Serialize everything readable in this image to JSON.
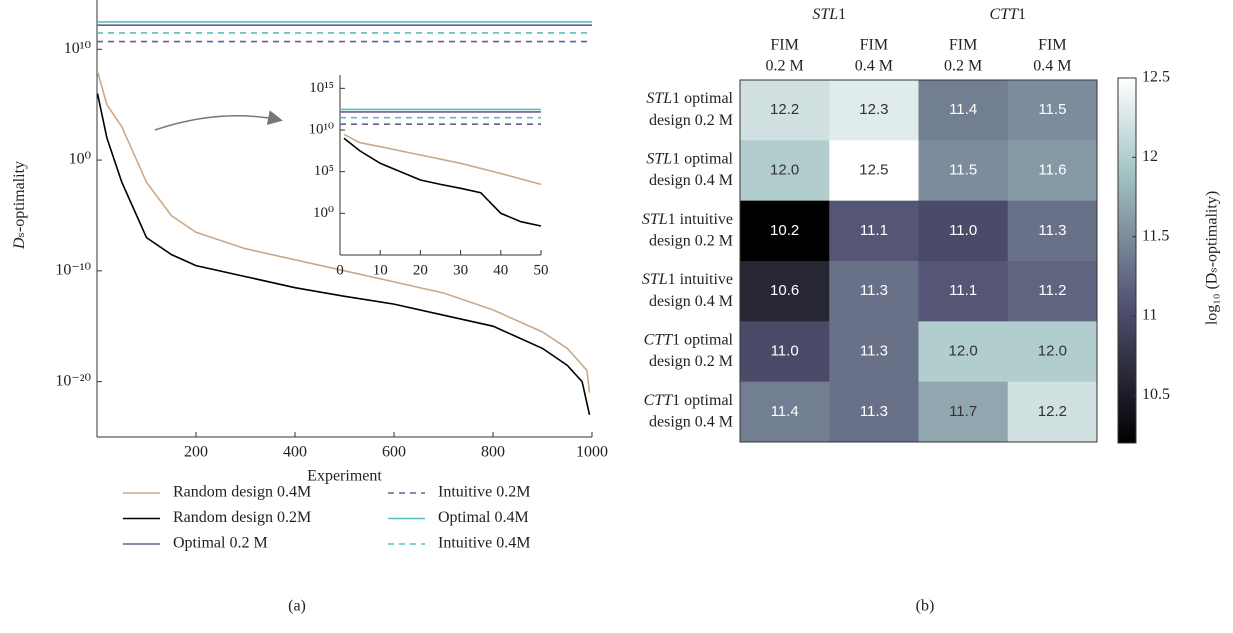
{
  "chart_data": [
    {
      "type": "line",
      "log_y": true,
      "legend": "below",
      "caption": "(a)",
      "x_label": "Experiment",
      "y_label": "Dₛ-optimality",
      "xlim": [
        0,
        1000
      ],
      "xticks": [
        200,
        400,
        600,
        800,
        1000
      ],
      "ylim": [
        1e-25,
        100000000000000.0
      ],
      "yticks": [
        {
          "value": 1e-20,
          "label": "10⁻²⁰"
        },
        {
          "value": 1e-10,
          "label": "10⁻¹⁰"
        },
        {
          "value": 1,
          "label": "10⁰"
        },
        {
          "value": 10000000000.0,
          "label": "10¹⁰"
        }
      ],
      "series": [
        {
          "name": "Random design 0.4M",
          "color": "#c9a98a",
          "dash": false,
          "x": [
            1,
            20,
            50,
            100,
            150,
            200,
            300,
            400,
            500,
            600,
            700,
            800,
            900,
            950,
            990,
            995
          ],
          "values": [
            100000000.0,
            100000.0,
            1000.0,
            0.01,
            1e-05,
            3e-07,
            1e-08,
            1e-09,
            1e-10,
            1e-11,
            1e-12,
            3e-14,
            3e-16,
            1e-17,
            1e-19,
            1e-21
          ]
        },
        {
          "name": "Random design 0.2M",
          "color": "#000000",
          "dash": false,
          "x": [
            1,
            20,
            50,
            100,
            150,
            200,
            300,
            400,
            500,
            600,
            700,
            800,
            900,
            950,
            980,
            995
          ],
          "values": [
            1000000.0,
            100.0,
            0.01,
            1e-07,
            3e-09,
            3e-10,
            3e-11,
            3e-12,
            5e-13,
            1e-13,
            1e-14,
            1e-15,
            1e-17,
            3e-19,
            1e-20,
            1e-23
          ]
        },
        {
          "name": "Optimal 0.2 M",
          "color": "#6b5b95",
          "dash": false,
          "x": [
            0,
            1000
          ],
          "values": [
            1500000000000.0,
            1500000000000.0
          ]
        },
        {
          "name": "Intuitive 0.2M",
          "color": "#6b5b95",
          "dash": true,
          "x": [
            0,
            1000
          ],
          "values": [
            50000000000.0,
            50000000000.0
          ]
        },
        {
          "name": "Optimal 0.4M",
          "color": "#5bbdbd",
          "dash": false,
          "x": [
            0,
            1000
          ],
          "values": [
            3000000000000.0,
            3000000000000.0
          ]
        },
        {
          "name": "Intuitive 0.4M",
          "color": "#5bbdbd",
          "dash": true,
          "x": [
            0,
            1000
          ],
          "values": [
            300000000000.0,
            300000000000.0
          ]
        }
      ]
    },
    {
      "type": "line",
      "log_y": true,
      "xlim": [
        0,
        50
      ],
      "xticks": [
        0,
        10,
        20,
        30,
        40,
        50
      ],
      "ylim": [
        1e-05,
        1e+16
      ],
      "yticks": [
        {
          "value": 1,
          "label": "10⁰"
        },
        {
          "value": 100000.0,
          "label": "10⁵"
        },
        {
          "value": 10000000000.0,
          "label": "10¹⁰"
        },
        {
          "value": 1000000000000000.0,
          "label": "10¹⁵"
        }
      ],
      "series": [
        {
          "color": "#c9a98a",
          "dash": false,
          "x": [
            1,
            5,
            10,
            20,
            30,
            40,
            50
          ],
          "values": [
            3000000000.0,
            300000000.0,
            100000000.0,
            10000000.0,
            1000000.0,
            60000.0,
            3000.0
          ]
        },
        {
          "color": "#000000",
          "dash": false,
          "x": [
            1,
            5,
            10,
            20,
            25,
            30,
            35,
            40,
            45,
            50
          ],
          "values": [
            1000000000.0,
            30000000.0,
            1000000.0,
            10000.0,
            3000.0,
            1000.0,
            300.0,
            1,
            0.1,
            0.03
          ]
        },
        {
          "color": "#6b5b95",
          "dash": false,
          "x": [
            0,
            50
          ],
          "values": [
            1500000000000.0,
            1500000000000.0
          ]
        },
        {
          "color": "#6b5b95",
          "dash": true,
          "x": [
            0,
            50
          ],
          "values": [
            50000000000.0,
            50000000000.0
          ]
        },
        {
          "color": "#5bbdbd",
          "dash": false,
          "x": [
            0,
            50
          ],
          "values": [
            3000000000000.0,
            3000000000000.0
          ]
        },
        {
          "color": "#5bbdbd",
          "dash": true,
          "x": [
            0,
            50
          ],
          "values": [
            300000000000.0,
            300000000000.0
          ]
        }
      ]
    },
    {
      "type": "heatmap",
      "caption": "(b)",
      "column_groups": [
        "STL1",
        "CTT1"
      ],
      "columns": [
        [
          "FIM",
          "0.2 M"
        ],
        [
          "FIM",
          "0.4 M"
        ],
        [
          "FIM",
          "0.2 M"
        ],
        [
          "FIM",
          "0.4 M"
        ]
      ],
      "rows": [
        [
          "STL1 optimal",
          "design 0.2 M"
        ],
        [
          "STL1 optimal",
          "design 0.4 M"
        ],
        [
          "STL1 intuitive",
          "design 0.2 M"
        ],
        [
          "STL1 intuitive",
          "design 0.4 M"
        ],
        [
          "CTT1 optimal",
          "design 0.2 M"
        ],
        [
          "CTT1 optimal",
          "design 0.4 M"
        ]
      ],
      "values": [
        [
          12.2,
          12.3,
          11.4,
          11.5
        ],
        [
          12.0,
          12.5,
          11.5,
          11.6
        ],
        [
          10.2,
          11.1,
          11.0,
          11.3
        ],
        [
          10.6,
          11.3,
          11.1,
          11.2
        ],
        [
          11.0,
          11.3,
          12.0,
          12.0
        ],
        [
          11.4,
          11.3,
          11.7,
          12.2
        ]
      ],
      "value_labels": [
        [
          "12.2",
          "12.3",
          "11.4",
          "11.5"
        ],
        [
          "12.0",
          "12.5",
          "11.5",
          "11.6"
        ],
        [
          "10.2",
          "11.1",
          "11.0",
          "11.3"
        ],
        [
          "10.6",
          "11.3",
          "11.1",
          "11.2"
        ],
        [
          "11.0",
          "11.3",
          "12.0",
          "12.0"
        ],
        [
          "11.4",
          "11.3",
          "11.7",
          "12.2"
        ]
      ],
      "clim": [
        10.2,
        12.5
      ],
      "cticks": [
        10.5,
        11,
        11.5,
        12,
        12.5
      ],
      "colormap": [
        "#000000",
        "#515171",
        "#a6c6c6",
        "#ffffff"
      ],
      "colorbar_label": "log₁₀ (Dₛ-optimality)"
    }
  ]
}
